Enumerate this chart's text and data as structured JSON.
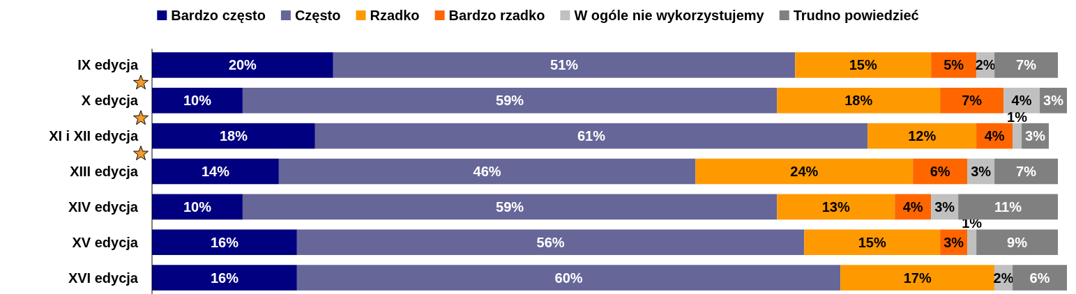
{
  "chart_data": {
    "type": "bar",
    "orientation": "horizontal",
    "stacked": true,
    "legend": "top",
    "categories": [
      "IX edycja",
      "X edycja",
      "XI i XII edycja",
      "XIII edycja",
      "XIV edycja",
      "XV edycja",
      "XVI edycja"
    ],
    "series": [
      {
        "name": "Bardzo często",
        "color": "#000080",
        "values": [
          20,
          10,
          18,
          14,
          10,
          16,
          16
        ],
        "value_labels": [
          "20%",
          "10%",
          "18%",
          "14%",
          "10%",
          "16%",
          "16%"
        ]
      },
      {
        "name": "Często",
        "color": "#666699",
        "values": [
          51,
          59,
          61,
          46,
          59,
          56,
          60
        ],
        "value_labels": [
          "51%",
          "59%",
          "61%",
          "46%",
          "59%",
          "56%",
          "60%"
        ]
      },
      {
        "name": "Rzadko",
        "color": "#ff9900",
        "values": [
          15,
          18,
          12,
          24,
          13,
          15,
          17
        ],
        "value_labels": [
          "15%",
          "18%",
          "12%",
          "24%",
          "13%",
          "15%",
          "17%"
        ]
      },
      {
        "name": "Bardzo rzadko",
        "color": "#ff6600",
        "values": [
          5,
          7,
          4,
          6,
          4,
          3,
          null
        ],
        "value_labels": [
          "5%",
          "7%",
          "4%",
          "6%",
          "4%",
          "3%",
          null
        ]
      },
      {
        "name": "W ogóle nie wykorzystujemy",
        "color": "#c0c0c0",
        "values": [
          2,
          4,
          1,
          3,
          3,
          1,
          2
        ],
        "value_labels": [
          "2%",
          "4%",
          "1%",
          "3%",
          "3%",
          "1%",
          "2%"
        ]
      },
      {
        "name": "Trudno powiedzieć",
        "color": "#808080",
        "values": [
          7,
          3,
          3,
          7,
          11,
          9,
          6
        ],
        "value_labels": [
          "7%",
          "3%",
          "3%",
          "7%",
          "11%",
          "9%",
          "6%"
        ]
      }
    ]
  }
}
